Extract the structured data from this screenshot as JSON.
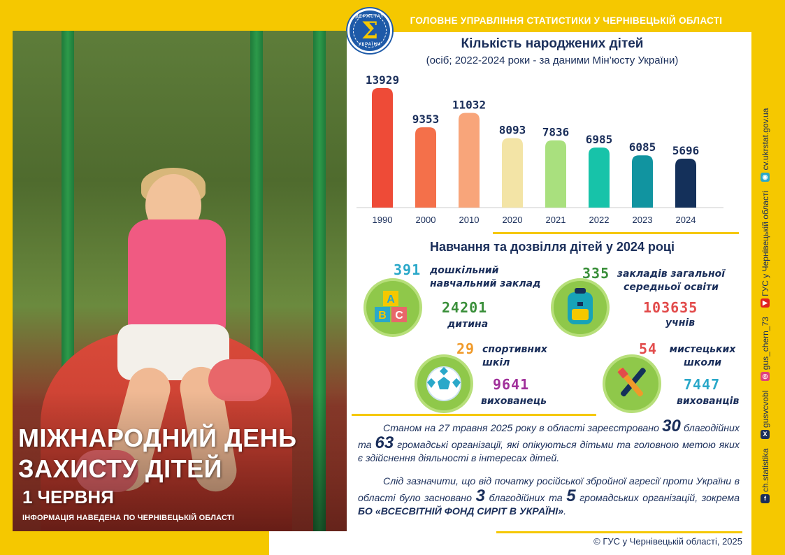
{
  "header": {
    "org_title": "ГОЛОВНЕ УПРАВЛІННЯ СТАТИСТИКИ У ЧЕРНІВЕЦЬКІЙ ОБЛАСТІ",
    "logo_top": "ДЕРЖСТАТ",
    "logo_bottom": "УКРАЇНИ",
    "logo_symbol": "Σ"
  },
  "poster": {
    "title_line1": "МІЖНАРОДНИЙ ДЕНЬ",
    "title_line2": "ЗАХИСТУ ДІТЕЙ",
    "date": "1 ЧЕРВНЯ",
    "note": "ІНФОРМАЦІЯ НАВЕДЕНА ПО ЧЕРНІВЕЦЬКІЙ ОБЛАСТІ"
  },
  "chart_data": {
    "type": "bar",
    "title": "Кількість народжених дітей",
    "subtitle": "(осіб; 2022-2024 роки - за даними Мін’юсту України)",
    "categories": [
      "1990",
      "2000",
      "2010",
      "2020",
      "2021",
      "2022",
      "2023",
      "2024"
    ],
    "values": [
      13929,
      9353,
      11032,
      8093,
      7836,
      6985,
      6085,
      5696
    ],
    "ylim": [
      0,
      14000
    ],
    "grid": false,
    "colors": [
      "#ee4b37",
      "#f4704a",
      "#f8a57a",
      "#f3e4a6",
      "#a9e07e",
      "#17c3a9",
      "#1194a0",
      "#14305a"
    ]
  },
  "section": {
    "title": "Навчання та дозвілля дітей у 2024 році",
    "items": [
      {
        "count": "391",
        "count_color": "#2aa8c9",
        "label": "дошкільний навчальний заклад",
        "value": "24201",
        "value_color": "#3a8f3a",
        "value_label": "дитина",
        "icon": "abc-blocks-icon"
      },
      {
        "count": "335",
        "count_color": "#3a8f3a",
        "label": "закладів загальної середньої освіти",
        "value": "103635",
        "value_color": "#e24b4b",
        "value_label": "учнів",
        "icon": "backpack-icon"
      },
      {
        "count": "29",
        "count_color": "#f09a2a",
        "label": "спортивних шкіл",
        "value": "9641",
        "value_color": "#a0309a",
        "value_label": "вихованець",
        "icon": "soccer-ball-icon"
      },
      {
        "count": "54",
        "count_color": "#e24b4b",
        "label": "мистецьких школи",
        "value": "7447",
        "value_color": "#2aa8c9",
        "value_label": "вихованців",
        "icon": "paint-brush-icon"
      }
    ]
  },
  "paragraph1": {
    "intro": "Станом на 27 травня 2025 року в області зареєстровано",
    "num1": "30",
    "mid": "благодійних та",
    "num2": "63",
    "rest": "громадські організації, які опікуються дітьми та головною метою яких є здійснення діяльності в інтересах дітей."
  },
  "paragraph2": {
    "intro": "Слід зазначити, що від початку російської збройної агресії проти України в області було засновано",
    "num1": "3",
    "mid": "благодійних та",
    "num2": "5",
    "rest": "громадських організацій, зокрема",
    "bold": "БО «ВСЕСВІТНІЙ ФОНД СИРІТ В УКРАЇНІ»",
    "end": "."
  },
  "sidebar": {
    "items": [
      {
        "icon": "facebook-icon",
        "color": "#1a2e5a",
        "glyph": "f",
        "text": "ch.statistika"
      },
      {
        "icon": "x-icon",
        "color": "#1a2e5a",
        "glyph": "X",
        "text": "gusvcvobl"
      },
      {
        "icon": "instagram-icon",
        "color": "#e0407a",
        "glyph": "◎",
        "text": "gus_chern_73"
      },
      {
        "icon": "youtube-icon",
        "color": "#e02020",
        "glyph": "▶",
        "text": "ГУС у Чернівецькій області"
      },
      {
        "icon": "globe-icon",
        "color": "#2aa8c9",
        "glyph": "◉",
        "text": "cv.ukrstat.gov.ua"
      }
    ]
  },
  "footer": {
    "copyright": "© ГУС у Чернівецькій області, 2025"
  }
}
